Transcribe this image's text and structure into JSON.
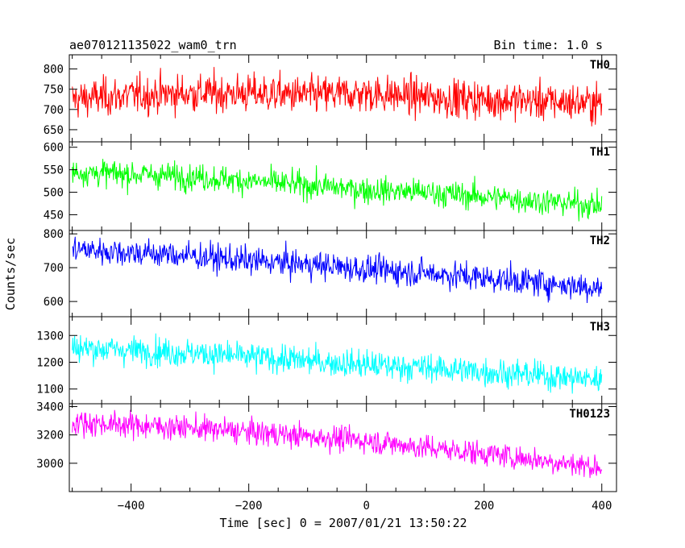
{
  "title_left": "ae070121135022_wam0_trn",
  "title_right": "Bin time: 1.0 s",
  "chart_data": {
    "type": "line",
    "xlabel": "Time [sec] 0 = 2007/01/21 13:50:22",
    "ylabel": "Counts/sec",
    "xlim": [
      -505,
      425
    ],
    "x_ticks": [
      -400,
      -200,
      0,
      200,
      400
    ],
    "x_tick_labels": [
      "−400",
      "−200",
      "0",
      "200",
      "400"
    ],
    "x_start": -500,
    "x_end": 400,
    "bin_time": 1.0,
    "panels": [
      {
        "name": "TH0",
        "color": "#ff0000",
        "ylim": [
          620,
          835
        ],
        "yticks": [
          650,
          700,
          750,
          800
        ],
        "trend": [
          [
            -500,
            725
          ],
          [
            -400,
            735
          ],
          [
            -300,
            740
          ],
          [
            -200,
            740
          ],
          [
            -100,
            735
          ],
          [
            0,
            740
          ],
          [
            100,
            730
          ],
          [
            200,
            725
          ],
          [
            300,
            720
          ],
          [
            400,
            715
          ]
        ],
        "noise": 40
      },
      {
        "name": "TH1",
        "color": "#00ff00",
        "ylim": [
          415,
          612
        ],
        "yticks": [
          450,
          500,
          550,
          600
        ],
        "trend": [
          [
            -500,
            545
          ],
          [
            -400,
            540
          ],
          [
            -300,
            535
          ],
          [
            -200,
            525
          ],
          [
            -100,
            515
          ],
          [
            0,
            505
          ],
          [
            100,
            500
          ],
          [
            200,
            490
          ],
          [
            300,
            480
          ],
          [
            400,
            470
          ]
        ],
        "noise": 25
      },
      {
        "name": "TH2",
        "color": "#0000ff",
        "ylim": [
          555,
          810
        ],
        "yticks": [
          600,
          700,
          800
        ],
        "trend": [
          [
            -500,
            755
          ],
          [
            -400,
            745
          ],
          [
            -300,
            735
          ],
          [
            -200,
            720
          ],
          [
            -100,
            710
          ],
          [
            0,
            695
          ],
          [
            100,
            685
          ],
          [
            200,
            670
          ],
          [
            300,
            655
          ],
          [
            400,
            640
          ]
        ],
        "noise": 35
      },
      {
        "name": "TH3",
        "color": "#00ffff",
        "ylim": [
          1045,
          1370
        ],
        "yticks": [
          1100,
          1200,
          1300
        ],
        "trend": [
          [
            -500,
            1255
          ],
          [
            -400,
            1245
          ],
          [
            -300,
            1235
          ],
          [
            -200,
            1220
          ],
          [
            -100,
            1205
          ],
          [
            0,
            1190
          ],
          [
            100,
            1180
          ],
          [
            200,
            1165
          ],
          [
            300,
            1150
          ],
          [
            400,
            1135
          ]
        ],
        "noise": 45
      },
      {
        "name": "TH0123",
        "color": "#ff00ff",
        "ylim": [
          2800,
          3420
        ],
        "yticks": [
          3000,
          3200,
          3400
        ],
        "trend": [
          [
            -500,
            3290
          ],
          [
            -400,
            3270
          ],
          [
            -300,
            3250
          ],
          [
            -200,
            3220
          ],
          [
            -100,
            3190
          ],
          [
            0,
            3160
          ],
          [
            100,
            3110
          ],
          [
            200,
            3070
          ],
          [
            300,
            3020
          ],
          [
            400,
            2970
          ]
        ],
        "noise": 75
      }
    ]
  }
}
